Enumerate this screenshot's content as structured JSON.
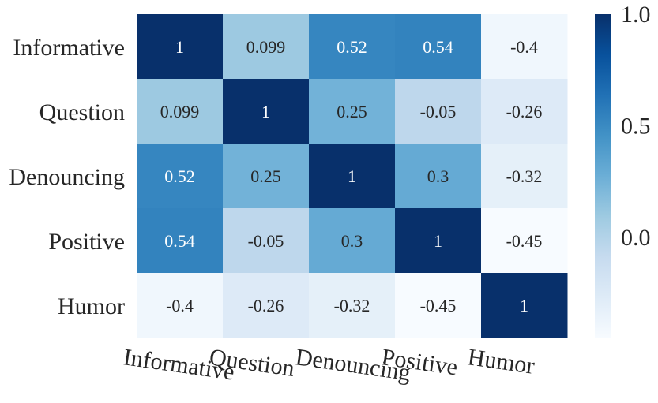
{
  "chart_data": {
    "type": "heatmap",
    "title": "",
    "xlabel": "",
    "ylabel": "",
    "row_labels": [
      "Informative",
      "Question",
      "Denouncing",
      "Positive",
      "Humor"
    ],
    "col_labels": [
      "Informative",
      "Question",
      "Denouncing",
      "Positive",
      "Humor"
    ],
    "values": [
      [
        1,
        0.099,
        0.52,
        0.54,
        -0.4
      ],
      [
        0.099,
        1,
        0.25,
        -0.05,
        -0.26
      ],
      [
        0.52,
        0.25,
        1,
        0.3,
        -0.32
      ],
      [
        0.54,
        -0.05,
        0.3,
        1,
        -0.45
      ],
      [
        -0.4,
        -0.26,
        -0.32,
        -0.45,
        1
      ]
    ],
    "cell_labels": [
      [
        "1",
        "0.099",
        "0.52",
        "0.54",
        "-0.4"
      ],
      [
        "0.099",
        "1",
        "0.25",
        "-0.05",
        "-0.26"
      ],
      [
        "0.52",
        "0.25",
        "1",
        "0.3",
        "-0.32"
      ],
      [
        "0.54",
        "-0.05",
        "0.3",
        "1",
        "-0.45"
      ],
      [
        "-0.4",
        "-0.26",
        "-0.32",
        "-0.45",
        "1"
      ]
    ],
    "colormap": "Blues",
    "color_range": [
      -0.45,
      1
    ],
    "colorbar_ticks": [
      1.0,
      0.5,
      0.0
    ],
    "colorbar_tick_labels": [
      "1.0",
      "0.5",
      "0.0"
    ],
    "x_tick_rotation": "rotated",
    "grid": false
  }
}
